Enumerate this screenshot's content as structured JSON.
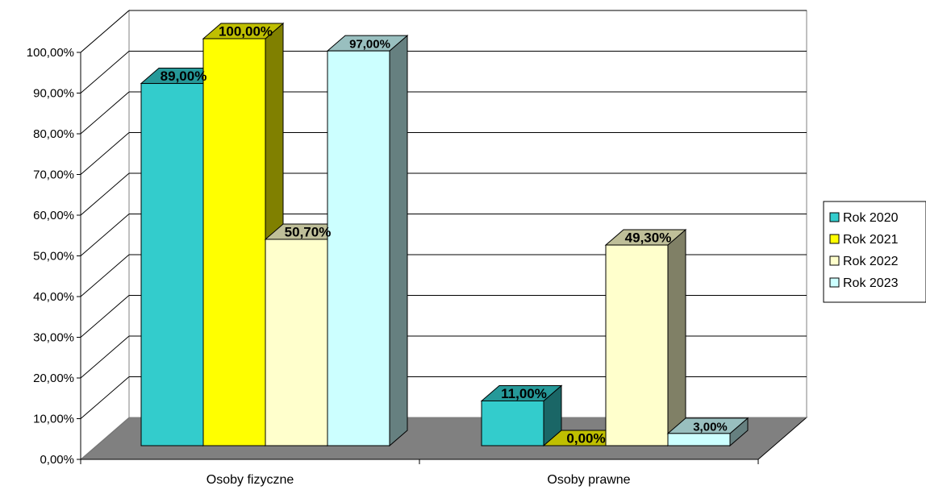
{
  "chart_data": {
    "type": "bar",
    "style": "3d-clustered-column",
    "categories": [
      "Osoby fizyczne",
      "Osoby prawne"
    ],
    "series": [
      {
        "name": "Rok 2020",
        "values": [
          89.0,
          11.0
        ],
        "labels": [
          "89,00%",
          "11,00%"
        ],
        "color": "#33CCCC",
        "side_color": "#1A6666",
        "top_color": "#269999"
      },
      {
        "name": "Rok 2021",
        "values": [
          100.0,
          0.0
        ],
        "labels": [
          "100,00%",
          "0,00%"
        ],
        "color": "#FFFF00",
        "side_color": "#808000",
        "top_color": "#BFBF00"
      },
      {
        "name": "Rok 2022",
        "values": [
          50.7,
          49.3
        ],
        "labels": [
          "50,70%",
          "49,30%"
        ],
        "color": "#FFFFCC",
        "side_color": "#808066",
        "top_color": "#BFBF99"
      },
      {
        "name": "Rok 2023",
        "values": [
          97.0,
          3.0
        ],
        "labels": [
          "97,00%",
          "3,00%"
        ],
        "color": "#CCFFFF",
        "side_color": "#668080",
        "top_color": "#99BFBF"
      }
    ],
    "y_ticks": [
      "0,00%",
      "10,00%",
      "20,00%",
      "30,00%",
      "40,00%",
      "50,00%",
      "60,00%",
      "70,00%",
      "80,00%",
      "90,00%",
      "100,00%"
    ],
    "ylim": [
      0,
      100
    ],
    "y_step": 10,
    "grid": true,
    "legend_position": "right",
    "floor_color": "#808080",
    "wall_color": "#FFFFFF",
    "gridline_color": "#000000"
  }
}
